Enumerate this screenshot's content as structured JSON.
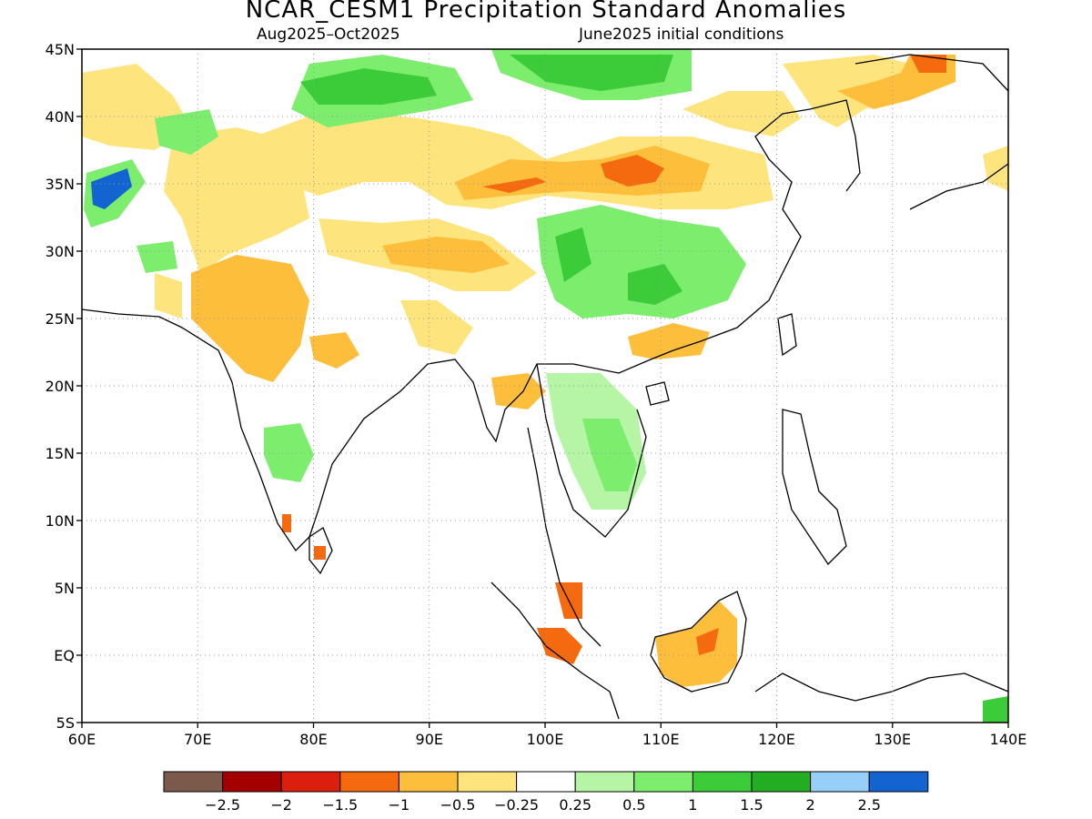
{
  "title": "NCAR_CESM1 Precipitation Standard Anomalies",
  "subtitle_period": "Aug2025–Oct2025",
  "subtitle_conditions": "June2025 initial conditions",
  "axes": {
    "lon_labels": [
      "60E",
      "70E",
      "80E",
      "90E",
      "100E",
      "110E",
      "120E",
      "130E",
      "140E"
    ],
    "lat_labels": [
      "45N",
      "40N",
      "35N",
      "30N",
      "25N",
      "20N",
      "15N",
      "10N",
      "5N",
      "EQ",
      "5S"
    ],
    "lon_range": [
      60,
      140
    ],
    "lat_range": [
      -5,
      45
    ],
    "grid": "dotted"
  },
  "colorbar": {
    "colors": [
      "#7b5a4b",
      "#a50000",
      "#dc1e0f",
      "#f56a0f",
      "#fdbe3c",
      "#fee47d",
      "#ffffff",
      "#b6f5a6",
      "#7ced6c",
      "#3ccc3a",
      "#22ad22",
      "#96d0fa",
      "#1364d0"
    ],
    "labels": [
      "-2.5",
      "-2",
      "-1.5",
      "-1",
      "-0.5",
      "-0.25",
      "0.25",
      "0.5",
      "1",
      "1.5",
      "2",
      "2.5"
    ]
  }
}
